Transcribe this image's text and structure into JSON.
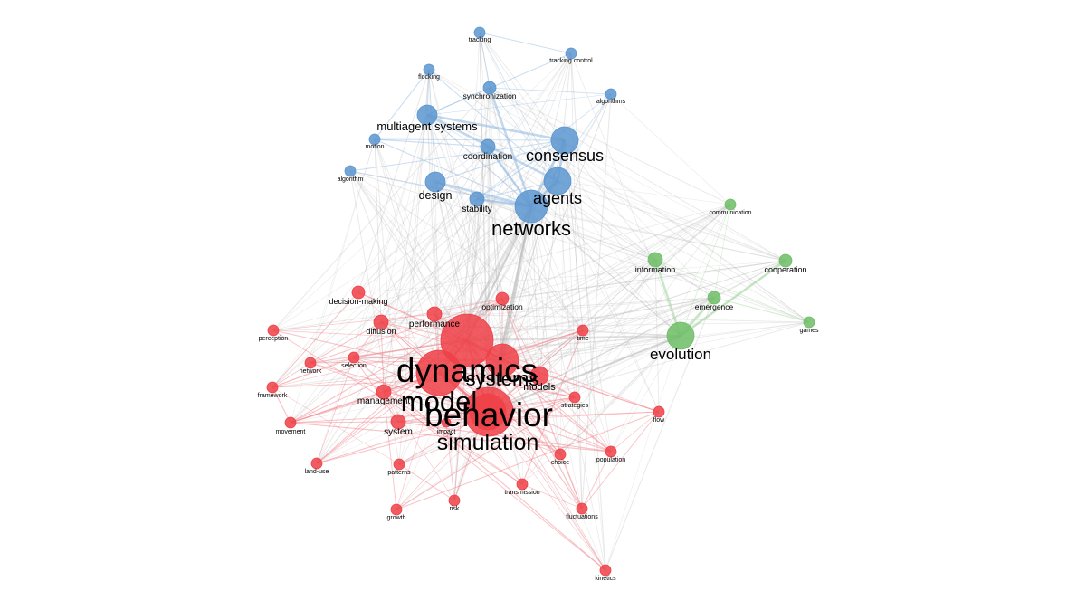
{
  "network": {
    "clusters": [
      {
        "id": "blue",
        "color": "#5b95cf",
        "edge_color": "#8fb8e0"
      },
      {
        "id": "red",
        "color": "#ee3f47",
        "edge_color": "#ef7b82"
      },
      {
        "id": "green",
        "color": "#6dbd66",
        "edge_color": "#9ed49a"
      }
    ],
    "inter_cluster_edge_color": "#b5b5b5",
    "nodes": [
      {
        "id": "tracking",
        "label": "tracking",
        "cluster": "blue",
        "weight": 6
      },
      {
        "id": "tracking-control",
        "label": "tracking control",
        "cluster": "blue",
        "weight": 6
      },
      {
        "id": "flocking",
        "label": "flocking",
        "cluster": "blue",
        "weight": 6
      },
      {
        "id": "synchronization",
        "label": "synchronization",
        "cluster": "blue",
        "weight": 7
      },
      {
        "id": "algorithms",
        "label": "algorithms",
        "cluster": "blue",
        "weight": 6
      },
      {
        "id": "multiagent-systems",
        "label": "multiagent systems",
        "cluster": "blue",
        "weight": 11
      },
      {
        "id": "motion",
        "label": "motion",
        "cluster": "blue",
        "weight": 6
      },
      {
        "id": "coordination",
        "label": "coordination",
        "cluster": "blue",
        "weight": 8
      },
      {
        "id": "consensus",
        "label": "consensus",
        "cluster": "blue",
        "weight": 15
      },
      {
        "id": "algorithm",
        "label": "algorithm",
        "cluster": "blue",
        "weight": 6
      },
      {
        "id": "design",
        "label": "design",
        "cluster": "blue",
        "weight": 11
      },
      {
        "id": "stability",
        "label": "stability",
        "cluster": "blue",
        "weight": 8
      },
      {
        "id": "agents",
        "label": "agents",
        "cluster": "blue",
        "weight": 15
      },
      {
        "id": "networks",
        "label": "networks",
        "cluster": "blue",
        "weight": 18
      },
      {
        "id": "communication",
        "label": "communication",
        "cluster": "green",
        "weight": 6
      },
      {
        "id": "information",
        "label": "information",
        "cluster": "green",
        "weight": 8
      },
      {
        "id": "cooperation",
        "label": "cooperation",
        "cluster": "green",
        "weight": 7
      },
      {
        "id": "emergence",
        "label": "emergence",
        "cluster": "green",
        "weight": 7
      },
      {
        "id": "games",
        "label": "games",
        "cluster": "green",
        "weight": 6
      },
      {
        "id": "evolution",
        "label": "evolution",
        "cluster": "green",
        "weight": 15
      },
      {
        "id": "decision-making",
        "label": "decision-making",
        "cluster": "red",
        "weight": 7
      },
      {
        "id": "optimization",
        "label": "optimization",
        "cluster": "red",
        "weight": 7
      },
      {
        "id": "performance",
        "label": "performance",
        "cluster": "red",
        "weight": 8
      },
      {
        "id": "diffusion",
        "label": "diffusion",
        "cluster": "red",
        "weight": 8
      },
      {
        "id": "perception",
        "label": "perception",
        "cluster": "red",
        "weight": 6
      },
      {
        "id": "time",
        "label": "time",
        "cluster": "red",
        "weight": 6
      },
      {
        "id": "network",
        "label": "network",
        "cluster": "red",
        "weight": 6
      },
      {
        "id": "selection",
        "label": "selection",
        "cluster": "red",
        "weight": 6
      },
      {
        "id": "dynamics",
        "label": "dynamics",
        "cluster": "red",
        "weight": 29
      },
      {
        "id": "systems",
        "label": "systems",
        "cluster": "red",
        "weight": 18
      },
      {
        "id": "models",
        "label": "models",
        "cluster": "red",
        "weight": 10
      },
      {
        "id": "framework",
        "label": "framework",
        "cluster": "red",
        "weight": 6
      },
      {
        "id": "management",
        "label": "management",
        "cluster": "red",
        "weight": 8
      },
      {
        "id": "model",
        "label": "model",
        "cluster": "red",
        "weight": 25
      },
      {
        "id": "behavior",
        "label": "behavior",
        "cluster": "red",
        "weight": 27
      },
      {
        "id": "strategies",
        "label": "strategies",
        "cluster": "red",
        "weight": 6
      },
      {
        "id": "flow",
        "label": "flow",
        "cluster": "red",
        "weight": 6
      },
      {
        "id": "movement",
        "label": "movement",
        "cluster": "red",
        "weight": 6
      },
      {
        "id": "system",
        "label": "system",
        "cluster": "red",
        "weight": 8
      },
      {
        "id": "impact",
        "label": "impact",
        "cluster": "red",
        "weight": 5
      },
      {
        "id": "simulation",
        "label": "simulation",
        "cluster": "red",
        "weight": 20
      },
      {
        "id": "choice",
        "label": "choice",
        "cluster": "red",
        "weight": 6
      },
      {
        "id": "population",
        "label": "population",
        "cluster": "red",
        "weight": 6
      },
      {
        "id": "land-use",
        "label": "land-use",
        "cluster": "red",
        "weight": 6
      },
      {
        "id": "patterns",
        "label": "patterns",
        "cluster": "red",
        "weight": 6
      },
      {
        "id": "transmission",
        "label": "transmission",
        "cluster": "red",
        "weight": 6
      },
      {
        "id": "risk",
        "label": "risk",
        "cluster": "red",
        "weight": 6
      },
      {
        "id": "growth",
        "label": "growth",
        "cluster": "red",
        "weight": 6
      },
      {
        "id": "fluctuations",
        "label": "fluctuations",
        "cluster": "red",
        "weight": 6
      },
      {
        "id": "kinetics",
        "label": "kinetics",
        "cluster": "red",
        "weight": 6
      }
    ],
    "strong_links": [
      [
        "multiagent-systems",
        "consensus"
      ],
      [
        "multiagent-systems",
        "agents"
      ],
      [
        "consensus",
        "agents"
      ],
      [
        "agents",
        "networks"
      ],
      [
        "consensus",
        "networks"
      ],
      [
        "synchronization",
        "networks"
      ],
      [
        "coordination",
        "networks"
      ],
      [
        "design",
        "networks"
      ],
      [
        "stability",
        "networks"
      ],
      [
        "evolution",
        "cooperation"
      ],
      [
        "evolution",
        "information"
      ],
      [
        "evolution",
        "emergence"
      ],
      [
        "networks",
        "dynamics"
      ],
      [
        "networks",
        "systems"
      ],
      [
        "networks",
        "model"
      ],
      [
        "networks",
        "behavior"
      ],
      [
        "dynamics",
        "model"
      ],
      [
        "dynamics",
        "behavior"
      ],
      [
        "dynamics",
        "systems"
      ],
      [
        "model",
        "behavior"
      ],
      [
        "behavior",
        "simulation"
      ],
      [
        "model",
        "simulation"
      ],
      [
        "dynamics",
        "evolution"
      ],
      [
        "behavior",
        "evolution"
      ]
    ]
  }
}
